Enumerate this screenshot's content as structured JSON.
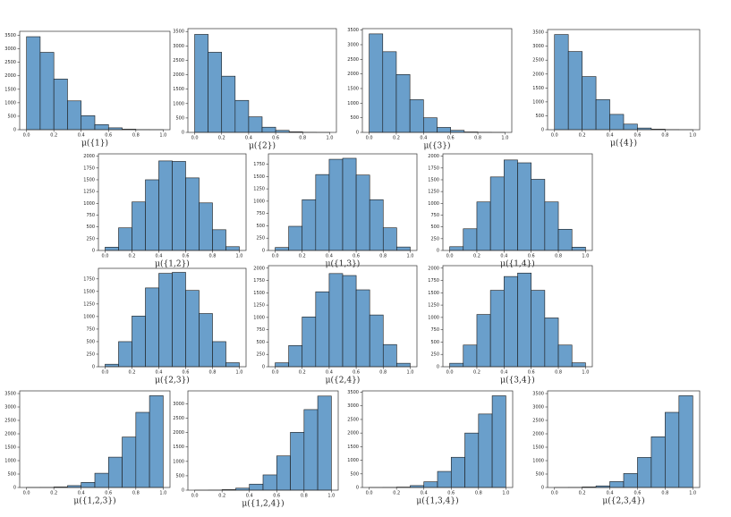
{
  "chart_data": [
    {
      "type": "histogram",
      "xlabel": "μ({1})",
      "bins": [
        0,
        0.1,
        0.2,
        0.3,
        0.4,
        0.5,
        0.6,
        0.7,
        0.8,
        0.9,
        1
      ],
      "counts": [
        3450,
        2870,
        1880,
        1070,
        520,
        190,
        70,
        20,
        5,
        2
      ],
      "color": "#6a9fcb",
      "xlim": [
        -0.05,
        1.05
      ],
      "ylim": [
        0,
        3650
      ],
      "xticks": [
        {
          "value": 0,
          "label": "0.0"
        },
        0.2,
        0.4,
        0.6,
        0.8,
        {
          "value": 1,
          "label": "1.0"
        }
      ],
      "yticks": [
        0,
        500,
        1000,
        1500,
        2000,
        2500,
        3000,
        3500
      ]
    },
    {
      "type": "histogram",
      "xlabel": "μ({2})",
      "bins": [
        0,
        0.1,
        0.2,
        0.3,
        0.4,
        0.5,
        0.6,
        0.7,
        0.8,
        0.9,
        1
      ],
      "counts": [
        3400,
        2780,
        1950,
        1110,
        540,
        180,
        70,
        20,
        5,
        1
      ],
      "color": "#6a9fcb",
      "xlim": [
        -0.05,
        1.05
      ],
      "ylim": [
        0,
        3600
      ],
      "xticks": [
        {
          "value": 0,
          "label": "0.0"
        },
        0.2,
        0.4,
        0.6,
        0.8,
        {
          "value": 1,
          "label": "1.0"
        }
      ],
      "yticks": [
        0,
        500,
        1000,
        1500,
        2000,
        2500,
        3000,
        3500
      ]
    },
    {
      "type": "histogram",
      "xlabel": "μ({3})",
      "bins": [
        0,
        0.1,
        0.2,
        0.3,
        0.4,
        0.5,
        0.6,
        0.7,
        0.8,
        0.9,
        1
      ],
      "counts": [
        3370,
        2760,
        1980,
        1120,
        500,
        170,
        70,
        15,
        5,
        1
      ],
      "color": "#6a9fcb",
      "xlim": [
        -0.05,
        1.05
      ],
      "ylim": [
        0,
        3550
      ],
      "xticks": [
        {
          "value": 0,
          "label": "0.0"
        },
        0.2,
        0.4,
        0.6,
        0.8,
        {
          "value": 1,
          "label": "1.0"
        }
      ],
      "yticks": [
        0,
        500,
        1000,
        1500,
        2000,
        2500,
        3000,
        3500
      ]
    },
    {
      "type": "histogram",
      "xlabel": "μ({4})",
      "bins": [
        0,
        0.1,
        0.2,
        0.3,
        0.4,
        0.5,
        0.6,
        0.7,
        0.8,
        0.9,
        1
      ],
      "counts": [
        3420,
        2810,
        1910,
        1080,
        550,
        200,
        60,
        20,
        5,
        1
      ],
      "color": "#6a9fcb",
      "xlim": [
        -0.05,
        1.05
      ],
      "ylim": [
        0,
        3600
      ],
      "xticks": [
        {
          "value": 0,
          "label": "0.0"
        },
        0.2,
        0.4,
        0.6,
        0.8,
        {
          "value": 1,
          "label": "1.0"
        }
      ],
      "yticks": [
        0,
        500,
        1000,
        1500,
        2000,
        2500,
        3000,
        3500
      ]
    },
    {
      "type": "histogram",
      "xlabel": "μ({1,2})",
      "bins": [
        0,
        0.1,
        0.2,
        0.3,
        0.4,
        0.5,
        0.6,
        0.7,
        0.8,
        0.9,
        1
      ],
      "counts": [
        70,
        480,
        1030,
        1500,
        1900,
        1890,
        1540,
        1010,
        440,
        80
      ],
      "color": "#6a9fcb",
      "xlim": [
        -0.05,
        1.05
      ],
      "ylim": [
        0,
        2050
      ],
      "xticks": [
        {
          "value": 0,
          "label": "0.0"
        },
        0.2,
        0.4,
        0.6,
        0.8,
        {
          "value": 1,
          "label": "1.0"
        }
      ],
      "yticks": [
        0,
        250,
        500,
        750,
        1000,
        1250,
        1500,
        1750,
        2000
      ]
    },
    {
      "type": "histogram",
      "xlabel": "μ({1,3})",
      "bins": [
        0,
        0.1,
        0.2,
        0.3,
        0.4,
        0.5,
        0.6,
        0.7,
        0.8,
        0.9,
        1
      ],
      "counts": [
        60,
        490,
        1030,
        1540,
        1850,
        1870,
        1530,
        1030,
        460,
        70
      ],
      "color": "#6a9fcb",
      "xlim": [
        -0.05,
        1.05
      ],
      "ylim": [
        0,
        1960
      ],
      "xticks": [
        {
          "value": 0,
          "label": "0.0"
        },
        0.2,
        0.4,
        0.6,
        0.8,
        {
          "value": 1,
          "label": "1.0"
        }
      ],
      "yticks": [
        0,
        250,
        500,
        750,
        1000,
        1250,
        1500,
        1750
      ]
    },
    {
      "type": "histogram",
      "xlabel": "μ({1,4})",
      "bins": [
        0,
        0.1,
        0.2,
        0.3,
        0.4,
        0.5,
        0.6,
        0.7,
        0.8,
        0.9,
        1
      ],
      "counts": [
        80,
        460,
        1030,
        1560,
        1920,
        1860,
        1510,
        1030,
        450,
        70
      ],
      "color": "#6a9fcb",
      "xlim": [
        -0.05,
        1.05
      ],
      "ylim": [
        0,
        2050
      ],
      "xticks": [
        {
          "value": 0,
          "label": "0.0"
        },
        0.2,
        0.4,
        0.6,
        0.8,
        {
          "value": 1,
          "label": "1.0"
        }
      ],
      "yticks": [
        0,
        250,
        500,
        750,
        1000,
        1250,
        1500,
        1750,
        2000
      ]
    },
    {
      "type": "histogram",
      "xlabel": "μ({2,3})",
      "bins": [
        0,
        0.1,
        0.2,
        0.3,
        0.4,
        0.5,
        0.6,
        0.7,
        0.8,
        0.9,
        1
      ],
      "counts": [
        50,
        500,
        1010,
        1570,
        1860,
        1880,
        1520,
        1060,
        500,
        80
      ],
      "color": "#6a9fcb",
      "xlim": [
        -0.05,
        1.05
      ],
      "ylim": [
        0,
        1960
      ],
      "xticks": [
        {
          "value": 0,
          "label": "0.0"
        },
        0.2,
        0.4,
        0.6,
        0.8,
        {
          "value": 1,
          "label": "1.0"
        }
      ],
      "yticks": [
        0,
        250,
        500,
        750,
        1000,
        1250,
        1500,
        1750
      ]
    },
    {
      "type": "histogram",
      "xlabel": "μ({2,4})",
      "bins": [
        0,
        0.1,
        0.2,
        0.3,
        0.4,
        0.5,
        0.6,
        0.7,
        0.8,
        0.9,
        1
      ],
      "counts": [
        80,
        430,
        1010,
        1520,
        1890,
        1850,
        1560,
        1050,
        450,
        70
      ],
      "color": "#6a9fcb",
      "xlim": [
        -0.05,
        1.05
      ],
      "ylim": [
        0,
        2050
      ],
      "xticks": [
        {
          "value": 0,
          "label": "0.0"
        },
        0.2,
        0.4,
        0.6,
        0.8,
        {
          "value": 1,
          "label": "1.0"
        }
      ],
      "yticks": [
        0,
        250,
        500,
        750,
        1000,
        1250,
        1500,
        1750,
        2000
      ]
    },
    {
      "type": "histogram",
      "xlabel": "μ({3,4})",
      "bins": [
        0,
        0.1,
        0.2,
        0.3,
        0.4,
        0.5,
        0.6,
        0.7,
        0.8,
        0.9,
        1
      ],
      "counts": [
        70,
        440,
        1060,
        1550,
        1830,
        1900,
        1550,
        990,
        440,
        80
      ],
      "color": "#6a9fcb",
      "xlim": [
        -0.05,
        1.05
      ],
      "ylim": [
        0,
        2050
      ],
      "xticks": [
        {
          "value": 0,
          "label": "0.0"
        },
        0.2,
        0.4,
        0.6,
        0.8,
        {
          "value": 1,
          "label": "1.0"
        }
      ],
      "yticks": [
        0,
        250,
        500,
        750,
        1000,
        1250,
        1500,
        1750,
        2000
      ]
    },
    {
      "type": "histogram",
      "xlabel": "μ({1,2,3})",
      "bins": [
        0,
        0.1,
        0.2,
        0.3,
        0.4,
        0.5,
        0.6,
        0.7,
        0.8,
        0.9,
        1
      ],
      "counts": [
        2,
        5,
        20,
        70,
        190,
        530,
        1130,
        1880,
        2800,
        3420
      ],
      "color": "#6a9fcb",
      "xlim": [
        -0.05,
        1.05
      ],
      "ylim": [
        0,
        3600
      ],
      "xticks": [
        {
          "value": 0,
          "label": "0.0"
        },
        0.2,
        0.4,
        0.6,
        0.8,
        {
          "value": 1,
          "label": "1.0"
        }
      ],
      "yticks": [
        0,
        500,
        1000,
        1500,
        2000,
        2500,
        3000,
        3500
      ]
    },
    {
      "type": "histogram",
      "xlabel": "μ({1,2,4})",
      "bins": [
        0,
        0.1,
        0.2,
        0.3,
        0.4,
        0.5,
        0.6,
        0.7,
        0.8,
        0.9,
        1
      ],
      "counts": [
        1,
        5,
        20,
        70,
        210,
        530,
        1190,
        2010,
        2800,
        3270
      ],
      "color": "#6a9fcb",
      "xlim": [
        -0.05,
        1.05
      ],
      "ylim": [
        0,
        3450
      ],
      "xticks": [
        {
          "value": 0,
          "label": "0.0"
        },
        0.2,
        0.4,
        0.6,
        0.8,
        {
          "value": 1,
          "label": "1.0"
        }
      ],
      "yticks": [
        0,
        500,
        1000,
        1500,
        2000,
        2500,
        3000
      ]
    },
    {
      "type": "histogram",
      "xlabel": "μ({1,3,4})",
      "bins": [
        0,
        0.1,
        0.2,
        0.3,
        0.4,
        0.5,
        0.6,
        0.7,
        0.8,
        0.9,
        1
      ],
      "counts": [
        1,
        5,
        15,
        70,
        210,
        590,
        1110,
        2000,
        2700,
        3370
      ],
      "color": "#6a9fcb",
      "xlim": [
        -0.05,
        1.05
      ],
      "ylim": [
        0,
        3550
      ],
      "xticks": [
        {
          "value": 0,
          "label": "0.0"
        },
        0.2,
        0.4,
        0.6,
        0.8,
        {
          "value": 1,
          "label": "1.0"
        }
      ],
      "yticks": [
        0,
        500,
        1000,
        1500,
        2000,
        2500,
        3000,
        3500
      ]
    },
    {
      "type": "histogram",
      "xlabel": "μ({2,3,4})",
      "bins": [
        0,
        0.1,
        0.2,
        0.3,
        0.4,
        0.5,
        0.6,
        0.7,
        0.8,
        0.9,
        1
      ],
      "counts": [
        1,
        5,
        20,
        60,
        220,
        520,
        1120,
        1890,
        2800,
        3420
      ],
      "color": "#6a9fcb",
      "xlim": [
        -0.05,
        1.05
      ],
      "ylim": [
        0,
        3600
      ],
      "xticks": [
        {
          "value": 0,
          "label": "0.0"
        },
        0.2,
        0.4,
        0.6,
        0.8,
        {
          "value": 1,
          "label": "1.0"
        }
      ],
      "yticks": [
        0,
        500,
        1000,
        1500,
        2000,
        2500,
        3000,
        3500
      ]
    }
  ]
}
